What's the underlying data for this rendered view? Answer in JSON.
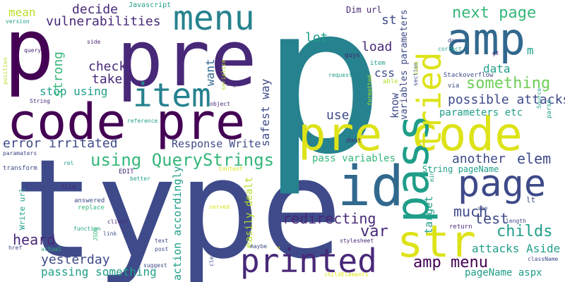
{
  "palette": {
    "background": "#ffffff",
    "dark_purple": "#440154",
    "indigo": "#482878",
    "blue": "#3e4a89",
    "slate": "#31688e",
    "teal": "#26828e",
    "green_teal": "#1f9e89",
    "green": "#35b779",
    "lime": "#6ece58",
    "yellow_green": "#b5de2b",
    "yellow": "#dde318"
  },
  "words": [
    {
      "text": "type",
      "color": "blue"
    },
    {
      "text": "p",
      "color": "teal"
    },
    {
      "text": "pre",
      "color": "indigo"
    },
    {
      "text": "p",
      "color": "dark_purple"
    },
    {
      "text": "code pre",
      "color": "dark_purple"
    },
    {
      "text": "pre code",
      "color": "yellow"
    },
    {
      "text": "amp",
      "color": "slate"
    },
    {
      "text": "pass",
      "color": "green_teal"
    },
    {
      "text": "tried",
      "color": "yellow"
    },
    {
      "text": "id",
      "color": "slate"
    },
    {
      "text": "page",
      "color": "blue"
    },
    {
      "text": "str",
      "color": "yellow"
    },
    {
      "text": "item",
      "color": "teal"
    },
    {
      "text": "menu",
      "color": "teal"
    },
    {
      "text": "printed",
      "color": "indigo"
    },
    {
      "text": "using QueryStrings",
      "color": "green"
    },
    {
      "text": "next page",
      "color": "green"
    },
    {
      "text": "something",
      "color": "lime"
    },
    {
      "text": "vulnerabilities",
      "color": "indigo"
    },
    {
      "text": "decide",
      "color": "indigo"
    },
    {
      "text": "mean",
      "color": "yellow_green"
    },
    {
      "text": "check",
      "color": "indigo"
    },
    {
      "text": "take",
      "color": "indigo"
    },
    {
      "text": "stop using",
      "color": "green_teal"
    },
    {
      "text": "strong",
      "color": "green"
    },
    {
      "text": "want",
      "color": "slate"
    },
    {
      "text": "error irritated",
      "color": "blue"
    },
    {
      "text": "Response Write",
      "color": "blue"
    },
    {
      "text": "safest way",
      "color": "blue"
    },
    {
      "text": "redirecting",
      "color": "indigo"
    },
    {
      "text": "heard",
      "color": "indigo"
    },
    {
      "text": "yesterday",
      "color": "blue"
    },
    {
      "text": "passing something",
      "color": "green_teal"
    },
    {
      "text": "action accordingly",
      "color": "green_teal"
    },
    {
      "text": "easily dealt",
      "color": "yellow_green"
    },
    {
      "text": "var",
      "color": "indigo"
    },
    {
      "text": "amp menu",
      "color": "dark_purple"
    },
    {
      "text": "childs",
      "color": "green_teal"
    },
    {
      "text": "much",
      "color": "blue"
    },
    {
      "text": "test",
      "color": "blue"
    },
    {
      "text": "elem",
      "color": "blue"
    },
    {
      "text": "another",
      "color": "blue"
    },
    {
      "text": "possible attacks",
      "color": "blue"
    },
    {
      "text": "parameters etc",
      "color": "green_teal"
    },
    {
      "text": "attacks Aside",
      "color": "green_teal"
    },
    {
      "text": "data",
      "color": "green_teal"
    },
    {
      "text": "css",
      "color": "blue"
    },
    {
      "text": "use",
      "color": "blue"
    },
    {
      "text": "lot",
      "color": "green_teal"
    },
    {
      "text": "load",
      "color": "indigo"
    },
    {
      "text": "st",
      "color": "blue"
    },
    {
      "text": "know",
      "color": "blue"
    },
    {
      "text": "target",
      "color": "green_teal"
    },
    {
      "text": "variables parameters",
      "color": "blue"
    },
    {
      "text": "pass variables",
      "color": "green"
    },
    {
      "text": "String pageName",
      "color": "green_teal"
    },
    {
      "text": "pageName aspx",
      "color": "green_teal"
    },
    {
      "text": "m",
      "color": "green_teal"
    },
    {
      "text": "lt",
      "color": "blue"
    },
    {
      "text": "Dim url",
      "color": "indigo"
    },
    {
      "text": "Javascript",
      "color": "green_teal"
    },
    {
      "text": "version",
      "color": "green_teal"
    },
    {
      "text": "position",
      "color": "yellow_green"
    },
    {
      "text": "query",
      "color": "indigo"
    },
    {
      "text": "side",
      "color": "indigo"
    },
    {
      "text": "serialize",
      "color": "yellow_green"
    },
    {
      "text": "String",
      "color": "indigo"
    },
    {
      "text": "sign",
      "color": "indigo"
    },
    {
      "text": "object",
      "color": "indigo"
    },
    {
      "text": "reference",
      "color": "green_teal"
    },
    {
      "text": "paramaters",
      "color": "blue"
    },
    {
      "text": "transform",
      "color": "blue"
    },
    {
      "text": "rel",
      "color": "green_teal"
    },
    {
      "text": "EDIT",
      "color": "indigo"
    },
    {
      "text": "Content",
      "color": "yellow"
    },
    {
      "text": "better",
      "color": "green_teal"
    },
    {
      "text": "file",
      "color": "indigo"
    },
    {
      "text": "answered",
      "color": "blue"
    },
    {
      "text": "replace",
      "color": "green"
    },
    {
      "text": "client",
      "color": "indigo"
    },
    {
      "text": "function",
      "color": "green_teal"
    },
    {
      "text": "Write url",
      "color": "green_teal"
    },
    {
      "text": "href",
      "color": "blue"
    },
    {
      "text": "actual",
      "color": "green"
    },
    {
      "text": "link",
      "color": "blue"
    },
    {
      "text": "JSON",
      "color": "green"
    },
    {
      "text": "text",
      "color": "blue"
    },
    {
      "text": "post",
      "color": "blue"
    },
    {
      "text": "suggest",
      "color": "blue"
    },
    {
      "text": "clean",
      "color": "blue"
    },
    {
      "text": "maybe",
      "color": "blue"
    },
    {
      "text": "served",
      "color": "yellow"
    },
    {
      "text": "dont",
      "color": "indigo"
    },
    {
      "text": "formatted",
      "color": "yellow_green"
    },
    {
      "text": "request",
      "color": "green_teal"
    },
    {
      "text": "stylesheet",
      "color": "indigo"
    },
    {
      "text": "childElements",
      "color": "yellow"
    },
    {
      "text": "guys",
      "color": "indigo"
    },
    {
      "text": "item",
      "color": "green_teal"
    },
    {
      "text": "able",
      "color": "yellow_green"
    },
    {
      "text": "section",
      "color": "blue"
    },
    {
      "text": "look",
      "color": "yellow_green"
    },
    {
      "text": "correct",
      "color": "green_teal"
    },
    {
      "text": "Stackoverflow",
      "color": "blue"
    },
    {
      "text": "via",
      "color": "blue"
    },
    {
      "text": "Source",
      "color": "green_teal"
    },
    {
      "text": "return",
      "color": "indigo"
    },
    {
      "text": "see",
      "color": "blue"
    },
    {
      "text": "length",
      "color": "blue"
    },
    {
      "text": "className",
      "color": "blue"
    },
    {
      "text": "parse",
      "color": "green_teal"
    },
    {
      "text": "min",
      "color": "green_teal"
    },
    {
      "text": "done",
      "color": "blue"
    },
    {
      "text": "gt",
      "color": "indigo"
    },
    {
      "text": "v",
      "color": "yellow"
    }
  ]
}
